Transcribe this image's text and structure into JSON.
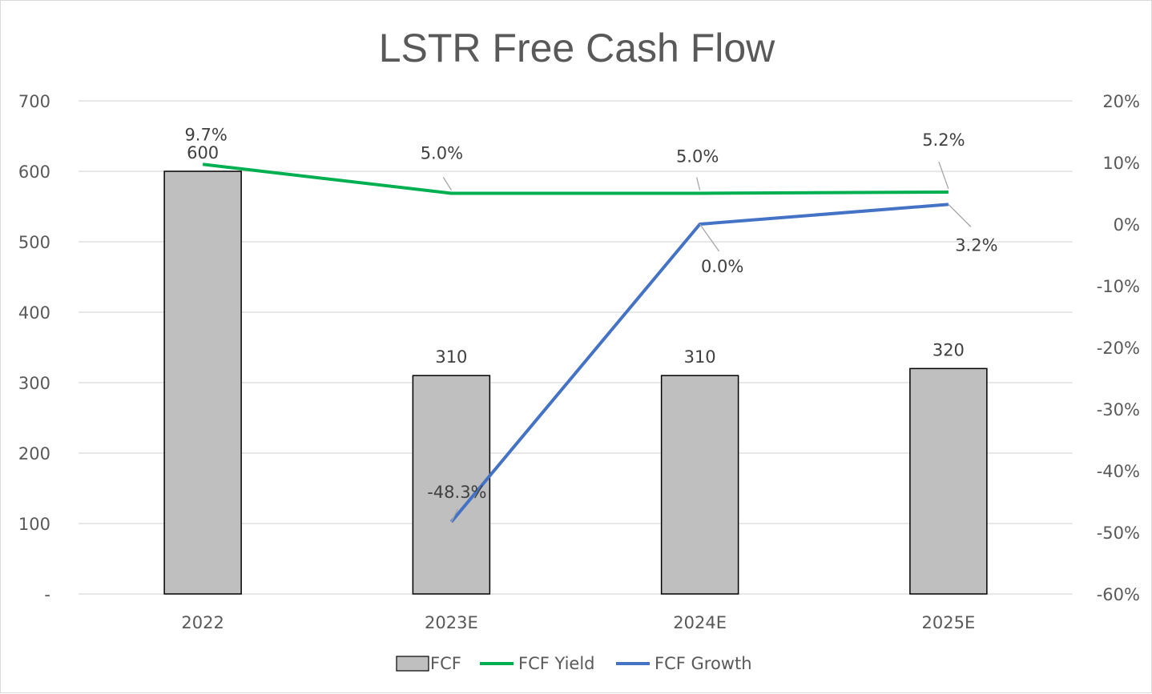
{
  "chart_data": {
    "type": "bar",
    "title": "LSTR Free Cash Flow",
    "categories": [
      "2022",
      "2023E",
      "2024E",
      "2025E"
    ],
    "left_axis": {
      "ylim": [
        0,
        700
      ],
      "ticks": [
        0,
        100,
        200,
        300,
        400,
        500,
        600,
        700
      ],
      "tick_labels": [
        "-",
        "100",
        "200",
        "300",
        "400",
        "500",
        "600",
        "700"
      ]
    },
    "right_axis": {
      "ylim": [
        -60,
        20
      ],
      "ticks": [
        -60,
        -50,
        -40,
        -30,
        -20,
        -10,
        0,
        10,
        20
      ],
      "tick_labels": [
        "-60%",
        "-50%",
        "-40%",
        "-30%",
        "-20%",
        "-10%",
        "0%",
        "10%",
        "20%"
      ]
    },
    "series": [
      {
        "name": "FCF",
        "type": "bar",
        "axis": "left",
        "color": "#bfbfbf",
        "values": [
          600,
          310,
          310,
          320
        ],
        "labels": [
          "600",
          "310",
          "310",
          "320"
        ]
      },
      {
        "name": "FCF Yield",
        "type": "line",
        "axis": "right",
        "color": "#00b050",
        "values": [
          9.7,
          5.0,
          5.0,
          5.2
        ],
        "labels": [
          "9.7%",
          "5.0%",
          "5.0%",
          "5.2%"
        ]
      },
      {
        "name": "FCF Growth",
        "type": "line",
        "axis": "right",
        "color": "#4472c4",
        "start_index": 1,
        "values": [
          null,
          -48.3,
          0.0,
          3.2
        ],
        "labels": [
          "",
          "-48.3%",
          "0.0%",
          "3.2%"
        ]
      }
    ],
    "grid": true,
    "legend_position": "bottom"
  }
}
